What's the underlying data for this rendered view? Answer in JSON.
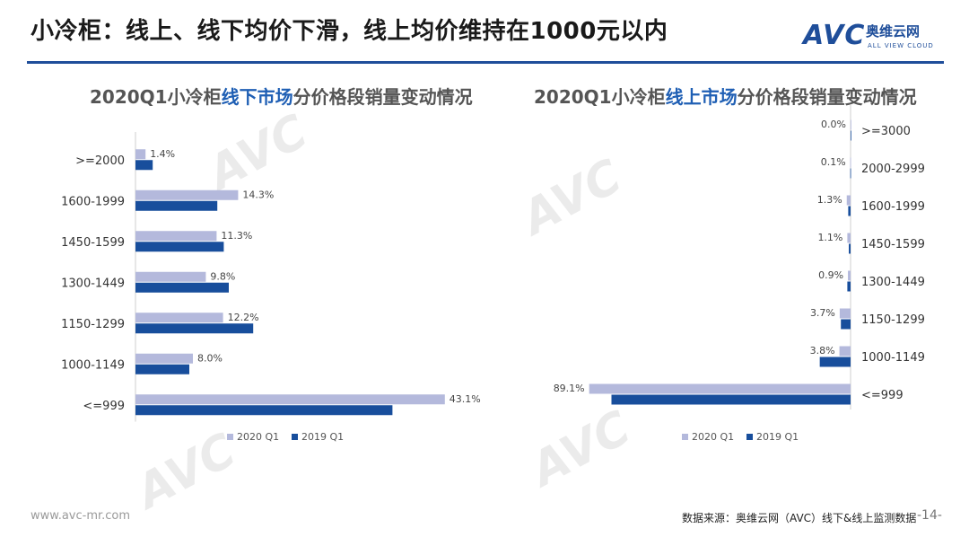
{
  "page": {
    "title": "小冷柜：线上、线下均价下滑，线上均价维持在1000元以内",
    "logo": {
      "brand": "AVC",
      "cn": "奥维云网",
      "en": "ALL VIEW CLOUD"
    },
    "footer_url": "www.avc-mr.com",
    "footer_source": "数据来源：奥维云网（AVC）线下&线上监测数据",
    "page_number": "-14-"
  },
  "colors": {
    "accent": "#1f4e9a",
    "series_2020": "#b4b9dc",
    "series_2019": "#184e9c"
  },
  "chart_data": [
    {
      "type": "bar",
      "orientation": "horizontal",
      "title_parts": [
        "2020Q1小冷柜",
        "线下市场",
        "分价格段销量变动情况"
      ],
      "categories": [
        ">=2000",
        "1600-1999",
        "1450-1599",
        "1300-1449",
        "1150-1299",
        "1000-1149",
        "<=999"
      ],
      "series": [
        {
          "name": "2020 Q1",
          "values": [
            1.4,
            14.3,
            11.3,
            9.8,
            12.2,
            8.0,
            43.1
          ],
          "labels": [
            "1.4%",
            "14.3%",
            "11.3%",
            "9.8%",
            "12.2%",
            "8.0%",
            "43.1%"
          ]
        },
        {
          "name": "2019 Q1",
          "values": [
            2.4,
            11.4,
            12.3,
            13.0,
            16.4,
            7.5,
            35.8
          ]
        }
      ],
      "xlim": [
        0,
        50
      ],
      "legend": "bottom",
      "axis_side": "left"
    },
    {
      "type": "bar",
      "orientation": "horizontal",
      "title_parts": [
        "2020Q1小冷柜",
        "线上市场",
        "分价格段销量变动情况"
      ],
      "categories": [
        ">=3000",
        "2000-2999",
        "1600-1999",
        "1450-1599",
        "1300-1449",
        "1150-1299",
        "1000-1149",
        "<=999"
      ],
      "series": [
        {
          "name": "2020 Q1",
          "values": [
            0.0,
            0.1,
            1.3,
            1.1,
            0.9,
            3.7,
            3.8,
            89.1
          ],
          "labels": [
            "0.0%",
            "0.1%",
            "1.3%",
            "1.1%",
            "0.9%",
            "3.7%",
            "3.8%",
            "89.1%"
          ]
        },
        {
          "name": "2019 Q1",
          "values": [
            0.0,
            0.1,
            0.8,
            0.6,
            1.1,
            3.3,
            10.5,
            81.5
          ]
        }
      ],
      "xlim": [
        0,
        100
      ],
      "legend": "bottom",
      "axis_side": "right",
      "reversed": true
    }
  ]
}
